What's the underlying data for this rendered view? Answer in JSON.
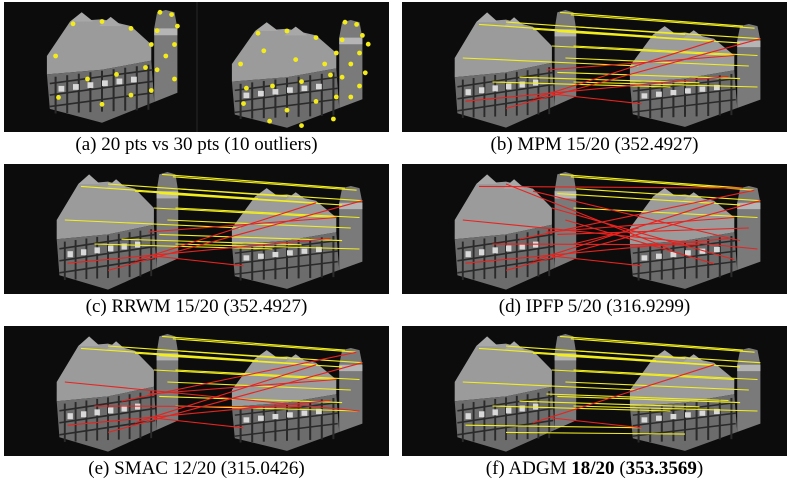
{
  "figure": {
    "panels": [
      {
        "id": "a",
        "caption": "(a) 20 pts vs 30 pts (10 outliers)",
        "keypoints": true,
        "correct": 0,
        "wrong": 0
      },
      {
        "id": "b",
        "caption": "(b) MPM 15/20 (352.4927)",
        "keypoints": false,
        "correct": 15,
        "wrong": 5
      },
      {
        "id": "c",
        "caption": "(c) RRWM 15/20 (352.4927)",
        "keypoints": false,
        "correct": 15,
        "wrong": 5
      },
      {
        "id": "d",
        "caption": "(d) IPFP 5/20 (316.9299)",
        "keypoints": false,
        "correct": 5,
        "wrong": 15
      },
      {
        "id": "e",
        "caption": "(e) SMAC 12/20 (315.0426)",
        "keypoints": false,
        "correct": 12,
        "wrong": 8
      },
      {
        "id": "f",
        "caption_prefix": "(f) ADGM ",
        "caption_bold_score": "18/20",
        "caption_mid": " (",
        "caption_bold_value": "353.3569",
        "caption_suffix": ")",
        "keypoints": false,
        "correct": 18,
        "wrong": 2
      }
    ],
    "colors": {
      "correct_line": "#f2ee1e",
      "wrong_line": "#e8231f",
      "keypoint": "#f4ec1a",
      "background": "#0c0c0c",
      "building": "#8e8e8e"
    }
  }
}
